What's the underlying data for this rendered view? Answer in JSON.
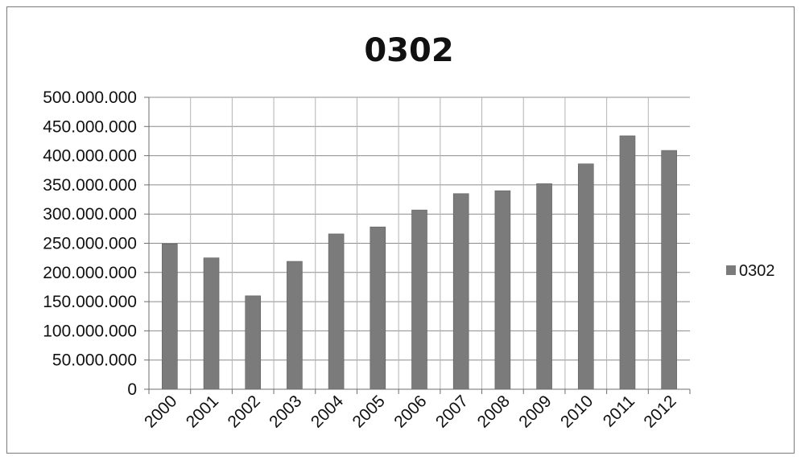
{
  "chart_data": {
    "type": "bar",
    "title": "0302",
    "xlabel": "",
    "ylabel": "",
    "categories": [
      "2000",
      "2001",
      "2002",
      "2003",
      "2004",
      "2005",
      "2006",
      "2007",
      "2008",
      "2009",
      "2010",
      "2011",
      "2012"
    ],
    "series": [
      {
        "name": "0302",
        "color": "#7b7b7b",
        "values": [
          249000000,
          225000000,
          160000000,
          219000000,
          266000000,
          278000000,
          307000000,
          335000000,
          340000000,
          352000000,
          386000000,
          434000000,
          409000000
        ]
      }
    ],
    "ylim": [
      0,
      500000000
    ],
    "yticks": [
      {
        "value": 0,
        "label": "0"
      },
      {
        "value": 50000000,
        "label": "50.000.000"
      },
      {
        "value": 100000000,
        "label": "100.000.000"
      },
      {
        "value": 150000000,
        "label": "150.000.000"
      },
      {
        "value": 200000000,
        "label": "200.000.000"
      },
      {
        "value": 250000000,
        "label": "250.000.000"
      },
      {
        "value": 300000000,
        "label": "300.000.000"
      },
      {
        "value": 350000000,
        "label": "350.000.000"
      },
      {
        "value": 400000000,
        "label": "400.000.000"
      },
      {
        "value": 450000000,
        "label": "450.000.000"
      },
      {
        "value": 500000000,
        "label": "500.000.000"
      }
    ],
    "grid": true,
    "legend_position": "right"
  }
}
